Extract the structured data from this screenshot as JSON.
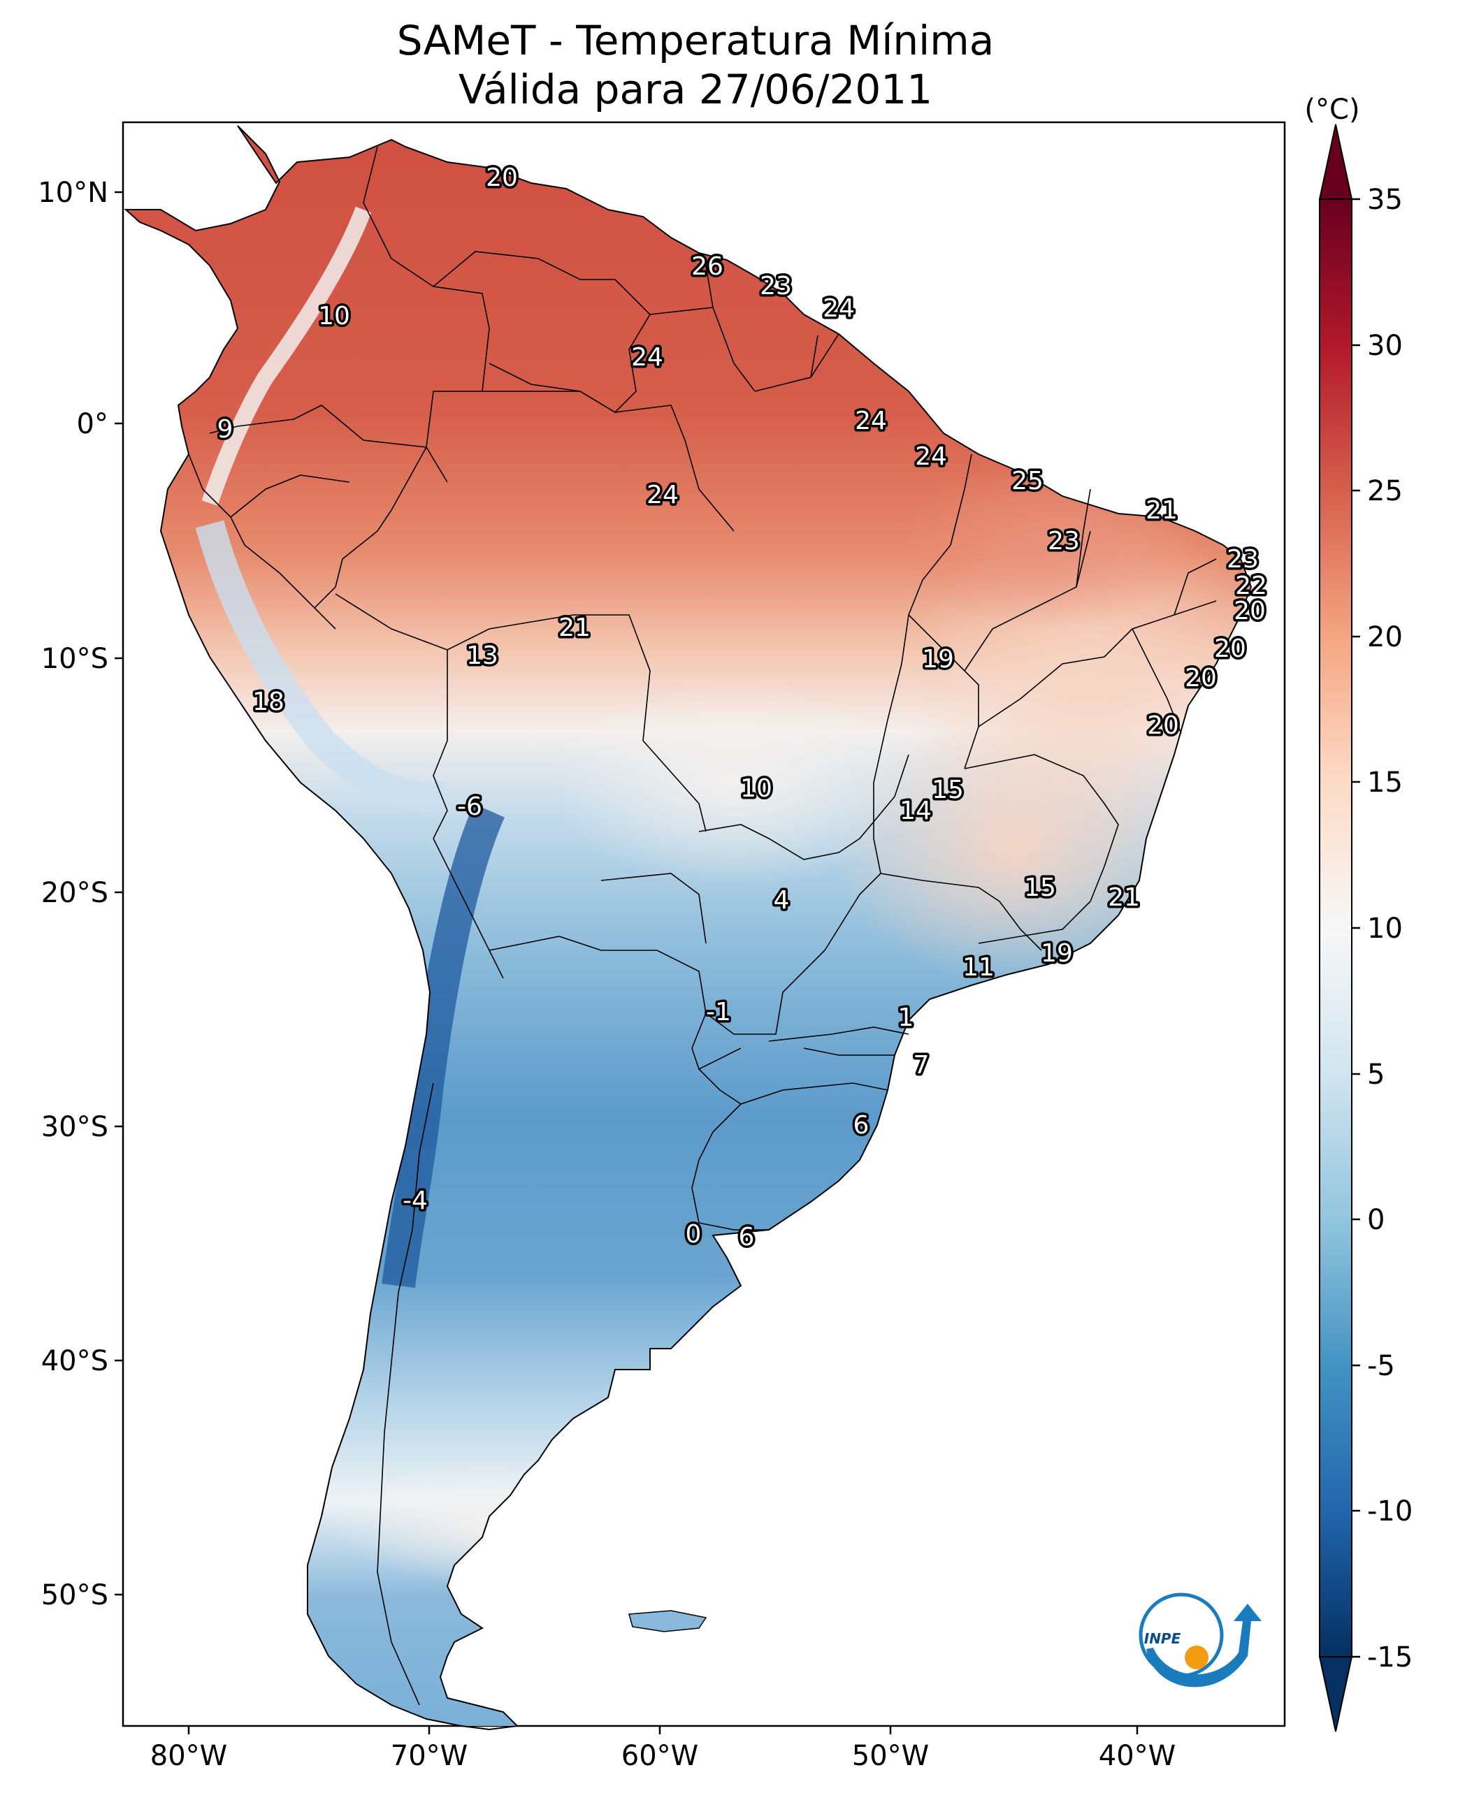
{
  "title": {
    "line1": "SAMeT - Temperatura Mínima",
    "line2": "Válida para 27/06/2011"
  },
  "colorbar": {
    "unit_label": "(°C)",
    "min": -15,
    "max": 35,
    "ticks": [
      "35",
      "30",
      "25",
      "20",
      "15",
      "10",
      "5",
      "0",
      "-5",
      "-10",
      "-15"
    ],
    "colors": [
      "#053061",
      "#2166ac",
      "#4393c3",
      "#92c5de",
      "#d1e5f0",
      "#f7f7f7",
      "#fddbc7",
      "#f4a582",
      "#d6604d",
      "#b2182b",
      "#67001f"
    ]
  },
  "axes": {
    "lon_ticks": [
      "80°W",
      "70°W",
      "60°W",
      "50°W",
      "40°W"
    ],
    "lat_ticks": [
      "10°N",
      "0°",
      "10°S",
      "20°S",
      "30°S",
      "40°S",
      "50°S"
    ]
  },
  "station_values": [
    {
      "label": "20"
    },
    {
      "label": "26"
    },
    {
      "label": "23"
    },
    {
      "label": "24"
    },
    {
      "label": "10"
    },
    {
      "label": "24"
    },
    {
      "label": "9"
    },
    {
      "label": "24"
    },
    {
      "label": "24"
    },
    {
      "label": "25"
    },
    {
      "label": "24"
    },
    {
      "label": "21"
    },
    {
      "label": "23"
    },
    {
      "label": "23"
    },
    {
      "label": "22"
    },
    {
      "label": "20"
    },
    {
      "label": "21"
    },
    {
      "label": "13"
    },
    {
      "label": "19"
    },
    {
      "label": "20"
    },
    {
      "label": "20"
    },
    {
      "label": "18"
    },
    {
      "label": "20"
    },
    {
      "label": "10"
    },
    {
      "label": "15"
    },
    {
      "label": "14"
    },
    {
      "label": "-6"
    },
    {
      "label": "15"
    },
    {
      "label": "4"
    },
    {
      "label": "21"
    },
    {
      "label": "19"
    },
    {
      "label": "11"
    },
    {
      "label": "-1"
    },
    {
      "label": "1"
    },
    {
      "label": "7"
    },
    {
      "label": "6"
    },
    {
      "label": "-4"
    },
    {
      "label": "0"
    },
    {
      "label": "6"
    }
  ],
  "logo": {
    "text": "INPE",
    "colors": {
      "ring": "#1a7bbf",
      "dot": "#f39c12"
    }
  }
}
